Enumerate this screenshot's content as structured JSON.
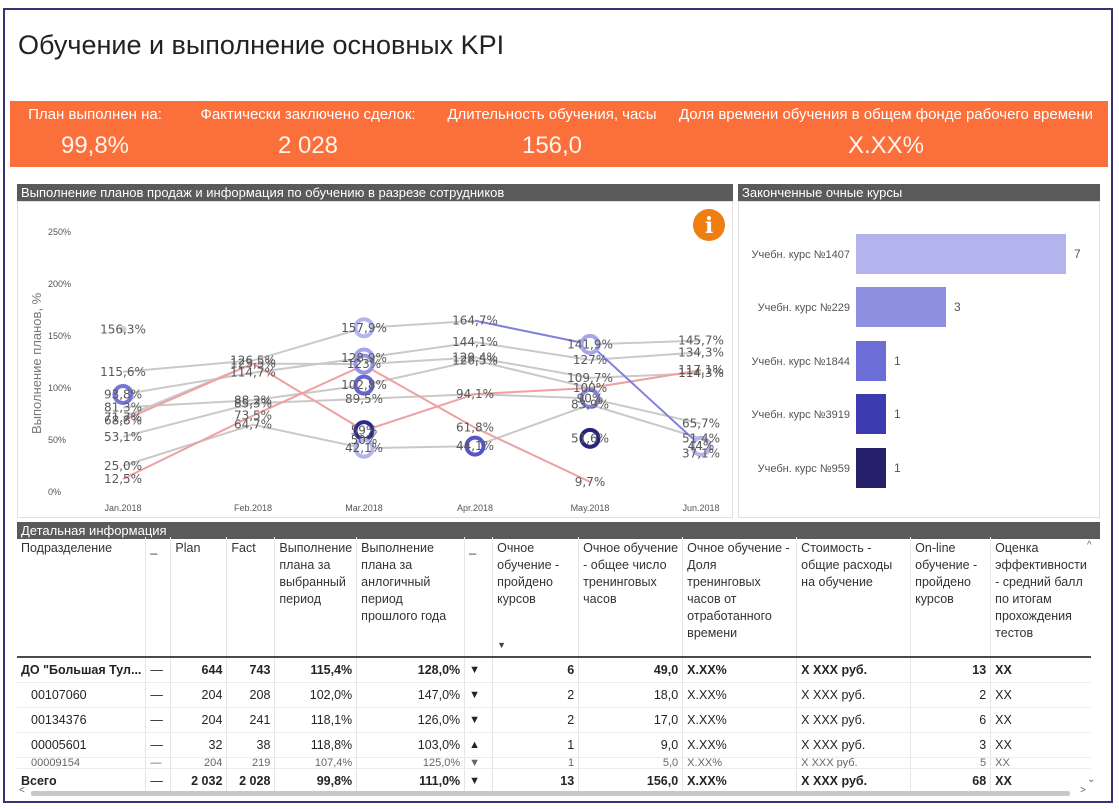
{
  "title": "Обучение и выполнение основных KPI",
  "kpis": [
    {
      "label": "План выполнен на:",
      "value": "99,8%"
    },
    {
      "label": "Фактически заключено сделок:",
      "value": "2 028"
    },
    {
      "label": "Длительность обучения, часы",
      "value": "156,0"
    },
    {
      "label": "Доля времени обучения в общем фонде рабочего времени",
      "value": "X.XX%"
    }
  ],
  "line_panel": {
    "title": "Выполнение планов продаж и информация по обучению в разрезе сотрудников",
    "info_icon": "info-icon"
  },
  "bar_panel": {
    "title": "Законченные очные курсы"
  },
  "table_panel": {
    "title": "Детальная информация"
  },
  "colors": {
    "kpi_band": "#fb6f3b",
    "panel_header": "#5a5a5a",
    "frame": "#3a3272",
    "gray_line": "#c9c9c9",
    "red_line": "#f0a0a0",
    "blue_line": "#8080dd"
  },
  "chart_data": [
    {
      "type": "line",
      "title": "Выполнение планов продаж и информация по обучению в разрезе сотрудников",
      "ylabel": "Выполнение планов, %",
      "categories": [
        "Jan.2018",
        "Feb.2018",
        "Mar.2018",
        "Apr.2018",
        "May.2018",
        "Jun.2018"
      ],
      "yticks": [
        "0%",
        "50%",
        "100%",
        "150%",
        "200%",
        "250%"
      ],
      "ylim": [
        0,
        250
      ],
      "series": [
        {
          "color": "gray",
          "values": [
            156.3,
            null,
            null,
            null,
            null,
            null
          ]
        },
        {
          "color": "gray",
          "values": [
            115.6,
            126.5,
            157.9,
            164.7,
            141.9,
            145.7
          ]
        },
        {
          "color": "gray",
          "values": [
            93.8,
            114.7,
            128.9,
            144.1,
            127.0,
            134.3
          ]
        },
        {
          "color": "gray",
          "values": [
            71.7,
            123.5,
            123.0,
            129.4,
            109.7,
            114.3
          ]
        },
        {
          "color": "gray",
          "values": [
            81.3,
            88.2,
            102.8,
            126.5,
            100.0,
            117.1
          ]
        },
        {
          "color": "gray",
          "values": [
            53.1,
            85.3,
            89.5,
            94.1,
            90.0,
            65.7
          ]
        },
        {
          "color": "gray",
          "values": [
            25.0,
            64.7,
            42.1,
            44.1,
            83.9,
            51.4
          ]
        },
        {
          "color": "red",
          "values": [
            68.8,
            123.5,
            59.0,
            94.1,
            100.0,
            117.1
          ]
        },
        {
          "color": "red",
          "values": [
            12.5,
            73.5,
            122.0,
            61.8,
            9.7,
            null
          ]
        },
        {
          "color": "blue",
          "values": [
            null,
            null,
            null,
            164.7,
            141.9,
            44.0
          ]
        }
      ],
      "labels": [
        {
          "cat": 0,
          "v": 156.3,
          "t": "156,3%"
        },
        {
          "cat": 0,
          "v": 115.6,
          "t": "115,6%"
        },
        {
          "cat": 0,
          "v": 93.8,
          "t": "93,8%"
        },
        {
          "cat": 0,
          "v": 71.7,
          "t": "71,7%"
        },
        {
          "cat": 0,
          "v": 81.3,
          "t": "81,3%"
        },
        {
          "cat": 0,
          "v": 68.8,
          "t": "68,8%"
        },
        {
          "cat": 0,
          "v": 53.1,
          "t": "53,1%"
        },
        {
          "cat": 0,
          "v": 12.5,
          "t": "12,5%"
        },
        {
          "cat": 0,
          "v": 25.0,
          "t": "25,0%"
        },
        {
          "cat": 1,
          "v": 126.5,
          "t": "126,5%"
        },
        {
          "cat": 1,
          "v": 114.7,
          "t": "114,7%"
        },
        {
          "cat": 1,
          "v": 123.5,
          "t": "123,5%"
        },
        {
          "cat": 1,
          "v": 88.2,
          "t": "88,2%"
        },
        {
          "cat": 1,
          "v": 73.5,
          "t": "73,5%"
        },
        {
          "cat": 1,
          "v": 85.3,
          "t": "85,3%"
        },
        {
          "cat": 1,
          "v": 64.7,
          "t": "64,7%"
        },
        {
          "cat": 2,
          "v": 157.9,
          "t": "157,9%"
        },
        {
          "cat": 2,
          "v": 128.9,
          "t": "128,9%"
        },
        {
          "cat": 2,
          "v": 123.0,
          "t": "123%"
        },
        {
          "cat": 2,
          "v": 102.8,
          "t": "102,8%"
        },
        {
          "cat": 2,
          "v": 89.5,
          "t": "89,5%"
        },
        {
          "cat": 2,
          "v": 59.0,
          "t": "59%"
        },
        {
          "cat": 2,
          "v": 50.0,
          "t": "50%"
        },
        {
          "cat": 2,
          "v": 42.1,
          "t": "42,1%"
        },
        {
          "cat": 3,
          "v": 164.7,
          "t": "164,7%"
        },
        {
          "cat": 3,
          "v": 144.1,
          "t": "144,1%"
        },
        {
          "cat": 3,
          "v": 129.4,
          "t": "129,4%"
        },
        {
          "cat": 3,
          "v": 126.5,
          "t": "126,5%"
        },
        {
          "cat": 3,
          "v": 94.1,
          "t": "94,1%"
        },
        {
          "cat": 3,
          "v": 61.8,
          "t": "61,8%"
        },
        {
          "cat": 3,
          "v": 44.1,
          "t": "44,1%"
        },
        {
          "cat": 4,
          "v": 141.9,
          "t": "141,9%"
        },
        {
          "cat": 4,
          "v": 127.0,
          "t": "127%"
        },
        {
          "cat": 4,
          "v": 109.7,
          "t": "109,7%"
        },
        {
          "cat": 4,
          "v": 100.0,
          "t": "100%"
        },
        {
          "cat": 4,
          "v": 90.0,
          "t": "90%"
        },
        {
          "cat": 4,
          "v": 83.9,
          "t": "83,9%"
        },
        {
          "cat": 4,
          "v": 51.6,
          "t": "51,6%"
        },
        {
          "cat": 4,
          "v": 9.7,
          "t": "9,7%"
        },
        {
          "cat": 5,
          "v": 145.7,
          "t": "145,7%"
        },
        {
          "cat": 5,
          "v": 134.3,
          "t": "134,3%"
        },
        {
          "cat": 5,
          "v": 114.3,
          "t": "114,3%"
        },
        {
          "cat": 5,
          "v": 117.1,
          "t": "117,1%"
        },
        {
          "cat": 5,
          "v": 65.7,
          "t": "65,7%"
        },
        {
          "cat": 5,
          "v": 51.4,
          "t": "51,4%"
        },
        {
          "cat": 5,
          "v": 44.0,
          "t": "44%"
        },
        {
          "cat": 5,
          "v": 37.1,
          "t": "37,1%"
        }
      ],
      "markers": [
        {
          "cat": 0,
          "v": 93.8,
          "color": "#7575d6"
        },
        {
          "cat": 2,
          "v": 157.9,
          "color": "#b5b5ee"
        },
        {
          "cat": 2,
          "v": 128.9,
          "color": "#a6a6ea"
        },
        {
          "cat": 2,
          "v": 123.0,
          "color": "#9595e3"
        },
        {
          "cat": 2,
          "v": 102.8,
          "color": "#6565cf"
        },
        {
          "cat": 2,
          "v": 59.0,
          "color": "#2a2a8a"
        },
        {
          "cat": 2,
          "v": 42.1,
          "color": "#b5b5ee"
        },
        {
          "cat": 3,
          "v": 44.1,
          "color": "#5656c6"
        },
        {
          "cat": 4,
          "v": 141.9,
          "color": "#a6a6ea"
        },
        {
          "cat": 4,
          "v": 90.0,
          "color": "#8585dc"
        },
        {
          "cat": 4,
          "v": 51.6,
          "color": "#25257d"
        },
        {
          "cat": 5,
          "v": 44.0,
          "color": "#b5b5ee"
        }
      ]
    },
    {
      "type": "bar",
      "title": "Законченные очные курсы",
      "categories": [
        "Учебн. курс №1407",
        "Учебн. курс №229",
        "Учебн. курс №1844",
        "Учебн. курс №3919",
        "Учебн. курс №959"
      ],
      "values": [
        7,
        3,
        1,
        1,
        1
      ],
      "colors": [
        "#b3b3ee",
        "#9090e2",
        "#6d6dd8",
        "#3e3ab0",
        "#26206a"
      ],
      "xlim": [
        0,
        7
      ]
    }
  ],
  "table": {
    "columns": [
      "Подразделение",
      "_",
      "Plan",
      "Fact",
      "Выполнение плана за выбранный период",
      "Выполнение плана за анлогичный период прошлого года",
      "_",
      "Очное обучение - пройдено курсов",
      "Очное обучение - общее число тренинговых часов",
      "Очное обучение - Доля тренинговых часов от отработанного времени",
      "Стоимость - общие расходы на обучение",
      "On-line обучение - пройдено курсов",
      "Оценка эффективности - средний балл по итогам прохождения тестов"
    ],
    "sort_icon": "▼",
    "rows": [
      [
        "ДО \"Большая Тул...",
        "—",
        "644",
        "743",
        "115,4%",
        "128,0%",
        "▼",
        "6",
        "49,0",
        "X.XX%",
        "X XXX руб.",
        "13",
        "XX"
      ],
      [
        "00107060",
        "—",
        "204",
        "208",
        "102,0%",
        "147,0%",
        "▼",
        "2",
        "18,0",
        "X.XX%",
        "X XXX руб.",
        "2",
        "XX"
      ],
      [
        "00134376",
        "—",
        "204",
        "241",
        "118,1%",
        "126,0%",
        "▼",
        "2",
        "17,0",
        "X.XX%",
        "X XXX руб.",
        "6",
        "XX"
      ],
      [
        "00005601",
        "—",
        "32",
        "38",
        "118,8%",
        "103,0%",
        "▲",
        "1",
        "9,0",
        "X.XX%",
        "X XXX руб.",
        "3",
        "XX"
      ],
      [
        "00009154",
        "—",
        "204",
        "219",
        "107,4%",
        "125,0%",
        "▼",
        "1",
        "5,0",
        "X.XX%",
        "X XXX руб.",
        "5",
        "XX"
      ]
    ],
    "total": [
      "Всего",
      "—",
      "2 032",
      "2 028",
      "99,8%",
      "111,0%",
      "▼",
      "13",
      "156,0",
      "X.XX%",
      "X XXX руб.",
      "68",
      "XX"
    ]
  },
  "scroll": {
    "left": "<",
    "right": ">",
    "up": "^",
    "down": "⌄"
  }
}
